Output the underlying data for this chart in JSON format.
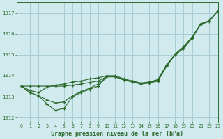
{
  "background_color": "#d0eaed",
  "grid_color": "#a8cdd4",
  "line_color": "#2d6a2d",
  "title": "Graphe pression niveau de la mer (hPa)",
  "xlim": [
    -0.5,
    23
  ],
  "ylim": [
    1011.8,
    1017.5
  ],
  "yticks": [
    1012,
    1013,
    1014,
    1015,
    1016,
    1017
  ],
  "xticks": [
    0,
    1,
    2,
    3,
    4,
    5,
    6,
    7,
    8,
    9,
    10,
    11,
    12,
    13,
    14,
    15,
    16,
    17,
    18,
    19,
    20,
    21,
    22,
    23
  ],
  "series": [
    [
      1013.5,
      1013.2,
      1013.05,
      1012.65,
      1012.35,
      1012.45,
      1013.0,
      1013.2,
      1013.35,
      1013.5,
      1013.95,
      1013.95,
      1013.8,
      1013.7,
      1013.6,
      1013.65,
      1013.75,
      1014.45,
      1015.0,
      1015.3,
      1015.8,
      1016.45,
      1016.6,
      1017.1
    ],
    [
      1013.5,
      1013.2,
      1013.05,
      1012.85,
      1012.7,
      1012.75,
      1013.05,
      1013.25,
      1013.4,
      1013.6,
      1013.95,
      1013.95,
      1013.82,
      1013.72,
      1013.62,
      1013.68,
      1013.78,
      1014.48,
      1015.02,
      1015.35,
      1015.82,
      1016.47,
      1016.62,
      1017.1
    ],
    [
      1013.5,
      1013.3,
      1013.2,
      1013.45,
      1013.55,
      1013.6,
      1013.7,
      1013.75,
      1013.85,
      1013.9,
      1014.0,
      1014.0,
      1013.85,
      1013.75,
      1013.65,
      1013.7,
      1013.8,
      1014.5,
      1015.02,
      1015.38,
      1015.85,
      1016.48,
      1016.63,
      1017.1
    ],
    [
      1013.5,
      1013.5,
      1013.5,
      1013.5,
      1013.5,
      1013.5,
      1013.55,
      1013.6,
      1013.68,
      1013.75,
      1013.95,
      1013.95,
      1013.8,
      1013.72,
      1013.64,
      1013.7,
      1013.82,
      1014.52,
      1015.02,
      1015.38,
      1015.85,
      1016.48,
      1016.63,
      1017.1
    ]
  ]
}
